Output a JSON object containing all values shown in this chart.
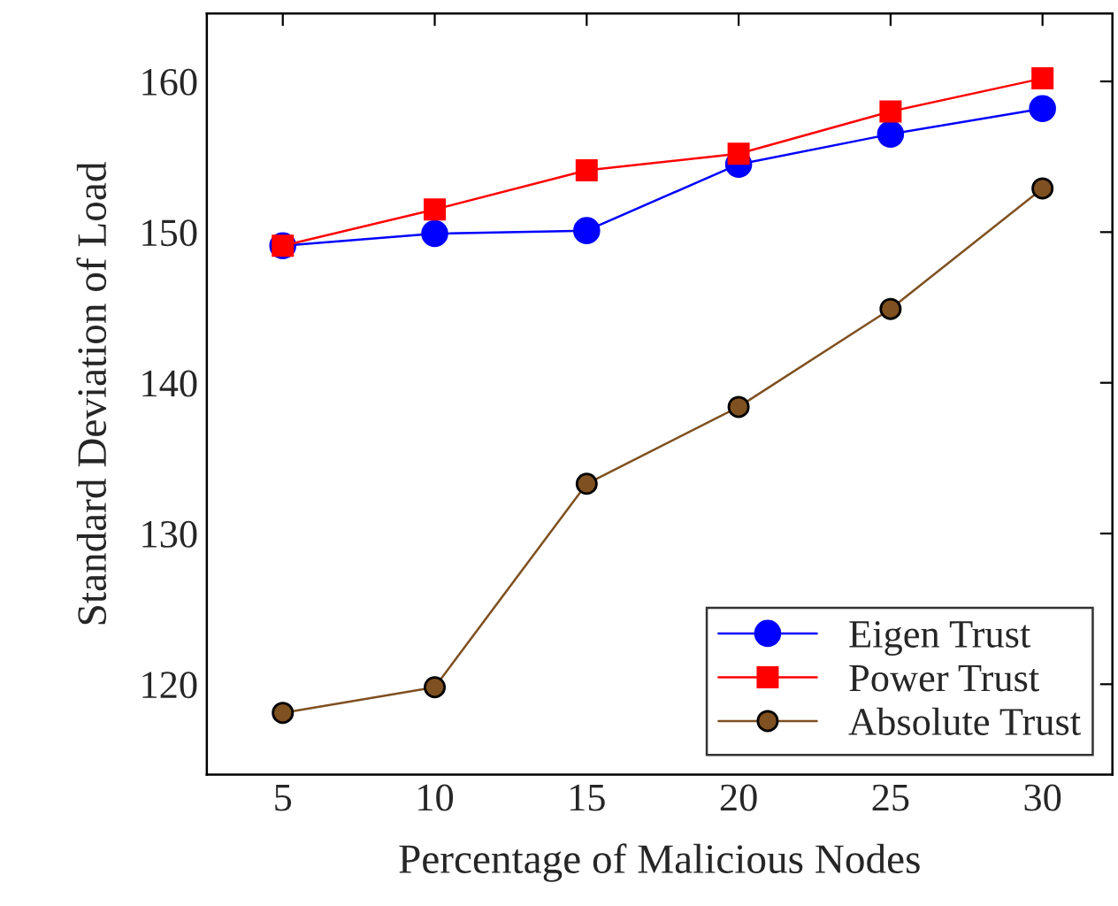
{
  "chart_data": {
    "type": "line",
    "xlabel": "Percentage of Malicious Nodes",
    "ylabel": "Standard Deviation of Load",
    "x": [
      5,
      10,
      15,
      20,
      25,
      30
    ],
    "series": [
      {
        "name": "Eigen Trust",
        "color": "#0000ff",
        "marker": "circle",
        "values": [
          149.1,
          149.9,
          150.1,
          154.5,
          156.5,
          158.2
        ]
      },
      {
        "name": "Power Trust",
        "color": "#ff0000",
        "marker": "square",
        "values": [
          149.1,
          151.5,
          154.1,
          155.2,
          158.0,
          160.2
        ]
      },
      {
        "name": "Absolute Trust",
        "color": "#7f5020",
        "marker": "circle",
        "values": [
          118.1,
          119.8,
          133.3,
          138.4,
          144.9,
          152.9
        ]
      }
    ],
    "xlim": [
      2.5,
      32.3
    ],
    "xticks": [
      5,
      10,
      15,
      20,
      25,
      30
    ],
    "ylim": [
      114,
      164.5
    ],
    "yticks": [
      120,
      130,
      140,
      150,
      160
    ],
    "grid": false,
    "legend": "bottom right",
    "line_style": "solid"
  }
}
